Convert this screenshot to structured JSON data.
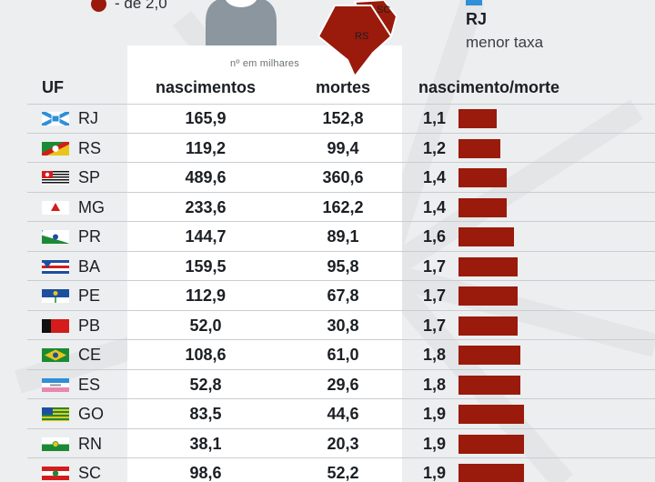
{
  "colors": {
    "accent": "#9a1a0b",
    "background": "#eceeef",
    "panel": "#ffffff"
  },
  "legend": {
    "label": "- de 2,0"
  },
  "map_labels": {
    "sc": "SC",
    "rs": "RS"
  },
  "side_note": {
    "uf": "RJ",
    "text": "menor taxa"
  },
  "table": {
    "subheader": "nº em milhares",
    "headers": {
      "uf": "UF",
      "births": "nascimentos",
      "deaths": "mortes",
      "ratio": "nascimento/morte"
    },
    "rows": [
      {
        "uf": "RJ",
        "births": "165,9",
        "deaths": "152,8",
        "ratio": "1,1",
        "ratio_value": 1.1,
        "flag": "rj-flag-icon"
      },
      {
        "uf": "RS",
        "births": "119,2",
        "deaths": "99,4",
        "ratio": "1,2",
        "ratio_value": 1.2,
        "flag": "rs-flag-icon"
      },
      {
        "uf": "SP",
        "births": "489,6",
        "deaths": "360,6",
        "ratio": "1,4",
        "ratio_value": 1.4,
        "flag": "sp-flag-icon"
      },
      {
        "uf": "MG",
        "births": "233,6",
        "deaths": "162,2",
        "ratio": "1,4",
        "ratio_value": 1.4,
        "flag": "mg-flag-icon"
      },
      {
        "uf": "PR",
        "births": "144,7",
        "deaths": "89,1",
        "ratio": "1,6",
        "ratio_value": 1.6,
        "flag": "pr-flag-icon"
      },
      {
        "uf": "BA",
        "births": "159,5",
        "deaths": "95,8",
        "ratio": "1,7",
        "ratio_value": 1.7,
        "flag": "ba-flag-icon"
      },
      {
        "uf": "PE",
        "births": "112,9",
        "deaths": "67,8",
        "ratio": "1,7",
        "ratio_value": 1.7,
        "flag": "pe-flag-icon"
      },
      {
        "uf": "PB",
        "births": "52,0",
        "deaths": "30,8",
        "ratio": "1,7",
        "ratio_value": 1.7,
        "flag": "pb-flag-icon"
      },
      {
        "uf": "CE",
        "births": "108,6",
        "deaths": "61,0",
        "ratio": "1,8",
        "ratio_value": 1.8,
        "flag": "ce-flag-icon"
      },
      {
        "uf": "ES",
        "births": "52,8",
        "deaths": "29,6",
        "ratio": "1,8",
        "ratio_value": 1.8,
        "flag": "es-flag-icon"
      },
      {
        "uf": "GO",
        "births": "83,5",
        "deaths": "44,6",
        "ratio": "1,9",
        "ratio_value": 1.9,
        "flag": "go-flag-icon"
      },
      {
        "uf": "RN",
        "births": "38,1",
        "deaths": "20,3",
        "ratio": "1,9",
        "ratio_value": 1.9,
        "flag": "rn-flag-icon"
      },
      {
        "uf": "SC",
        "births": "98,6",
        "deaths": "52,2",
        "ratio": "1,9",
        "ratio_value": 1.9,
        "flag": "sc-flag-icon"
      }
    ]
  }
}
